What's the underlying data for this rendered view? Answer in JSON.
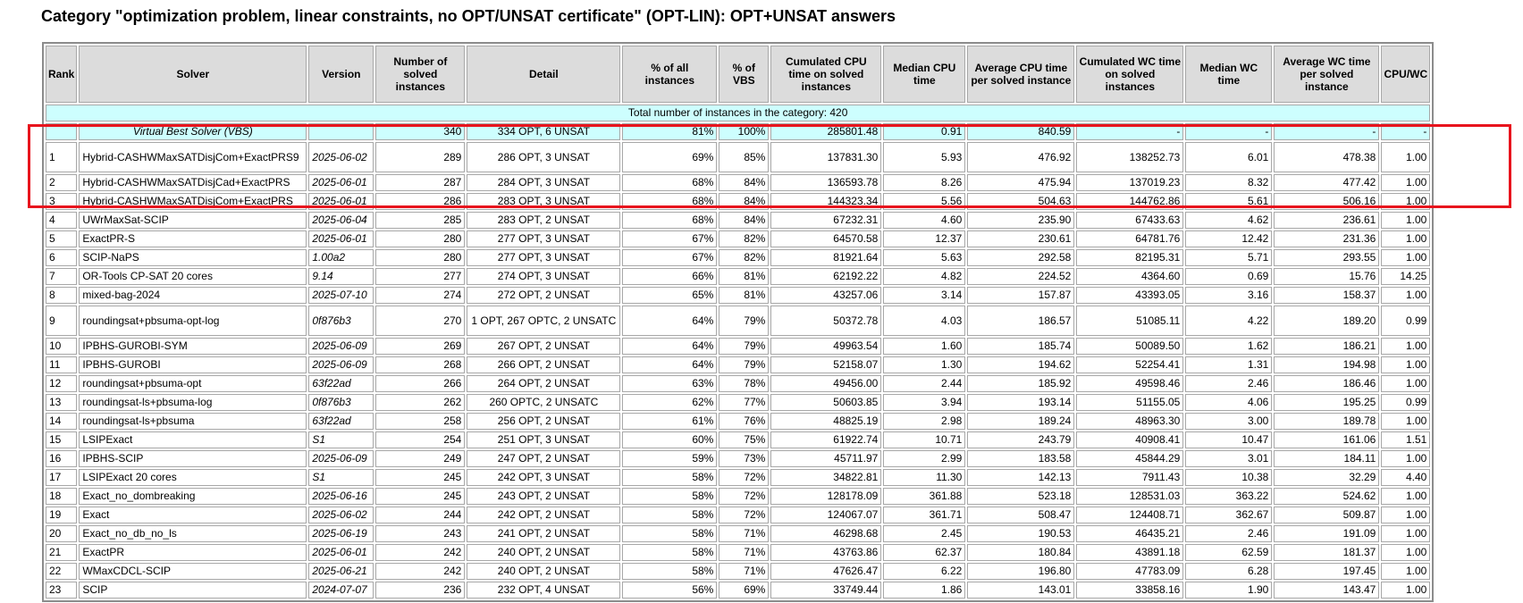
{
  "page": {
    "heading": "Category \"optimization problem, linear constraints, no OPT/UNSAT certificate\" (OPT-LIN): OPT+UNSAT answers"
  },
  "table": {
    "headers": {
      "rank": "Rank",
      "solver": "Solver",
      "version": "Version",
      "solved": "Number of solved instances",
      "detail": "Detail",
      "pct_all": "% of all instances",
      "pct_vbs": "% of VBS",
      "cum_cpu": "Cumulated CPU time on solved instances",
      "med_cpu": "Median CPU time",
      "avg_cpu": "Average CPU time per solved instance",
      "cum_wc": "Cumulated WC time on solved instances",
      "med_wc": "Median WC time",
      "avg_wc": "Average WC time per solved instance",
      "cpu_wc": "CPU/WC"
    },
    "total_row": "Total number of instances in the category: 420",
    "vbs": {
      "rank": "",
      "solver": "Virtual Best Solver (VBS)",
      "version": "",
      "solved": "340",
      "detail": "334 OPT, 6 UNSAT",
      "pct_all": "81%",
      "pct_vbs": "100%",
      "cum_cpu": "285801.48",
      "med_cpu": "0.91",
      "avg_cpu": "840.59",
      "cum_wc": "-",
      "med_wc": "-",
      "avg_wc": "-",
      "cpu_wc": "-"
    },
    "rows": [
      {
        "rank": "1",
        "solver": "Hybrid-CASHWMaxSATDisjCom+ExactPRS9",
        "version": "2025-06-02",
        "solved": "289",
        "detail": "286 OPT, 3 UNSAT",
        "pct_all": "69%",
        "pct_vbs": "85%",
        "cum_cpu": "137831.30",
        "med_cpu": "5.93",
        "avg_cpu": "476.92",
        "cum_wc": "138252.73",
        "med_wc": "6.01",
        "avg_wc": "478.38",
        "cpu_wc": "1.00"
      },
      {
        "rank": "2",
        "solver": "Hybrid-CASHWMaxSATDisjCad+ExactPRS",
        "version": "2025-06-01",
        "solved": "287",
        "detail": "284 OPT, 3 UNSAT",
        "pct_all": "68%",
        "pct_vbs": "84%",
        "cum_cpu": "136593.78",
        "med_cpu": "8.26",
        "avg_cpu": "475.94",
        "cum_wc": "137019.23",
        "med_wc": "8.32",
        "avg_wc": "477.42",
        "cpu_wc": "1.00"
      },
      {
        "rank": "3",
        "solver": "Hybrid-CASHWMaxSATDisjCom+ExactPRS",
        "version": "2025-06-01",
        "solved": "286",
        "detail": "283 OPT, 3 UNSAT",
        "pct_all": "68%",
        "pct_vbs": "84%",
        "cum_cpu": "144323.34",
        "med_cpu": "5.56",
        "avg_cpu": "504.63",
        "cum_wc": "144762.86",
        "med_wc": "5.61",
        "avg_wc": "506.16",
        "cpu_wc": "1.00"
      },
      {
        "rank": "4",
        "solver": "UWrMaxSat-SCIP",
        "version": "2025-06-04",
        "solved": "285",
        "detail": "283 OPT, 2 UNSAT",
        "pct_all": "68%",
        "pct_vbs": "84%",
        "cum_cpu": "67232.31",
        "med_cpu": "4.60",
        "avg_cpu": "235.90",
        "cum_wc": "67433.63",
        "med_wc": "4.62",
        "avg_wc": "236.61",
        "cpu_wc": "1.00"
      },
      {
        "rank": "5",
        "solver": "ExactPR-S",
        "version": "2025-06-01",
        "solved": "280",
        "detail": "277 OPT, 3 UNSAT",
        "pct_all": "67%",
        "pct_vbs": "82%",
        "cum_cpu": "64570.58",
        "med_cpu": "12.37",
        "avg_cpu": "230.61",
        "cum_wc": "64781.76",
        "med_wc": "12.42",
        "avg_wc": "231.36",
        "cpu_wc": "1.00"
      },
      {
        "rank": "6",
        "solver": "SCIP-NaPS",
        "version": "1.00a2",
        "solved": "280",
        "detail": "277 OPT, 3 UNSAT",
        "pct_all": "67%",
        "pct_vbs": "82%",
        "cum_cpu": "81921.64",
        "med_cpu": "5.63",
        "avg_cpu": "292.58",
        "cum_wc": "82195.31",
        "med_wc": "5.71",
        "avg_wc": "293.55",
        "cpu_wc": "1.00"
      },
      {
        "rank": "7",
        "solver": "OR-Tools CP-SAT 20 cores",
        "version": "9.14",
        "solved": "277",
        "detail": "274 OPT, 3 UNSAT",
        "pct_all": "66%",
        "pct_vbs": "81%",
        "cum_cpu": "62192.22",
        "med_cpu": "4.82",
        "avg_cpu": "224.52",
        "cum_wc": "4364.60",
        "med_wc": "0.69",
        "avg_wc": "15.76",
        "cpu_wc": "14.25"
      },
      {
        "rank": "8",
        "solver": "mixed-bag-2024",
        "version": "2025-07-10",
        "solved": "274",
        "detail": "272 OPT, 2 UNSAT",
        "pct_all": "65%",
        "pct_vbs": "81%",
        "cum_cpu": "43257.06",
        "med_cpu": "3.14",
        "avg_cpu": "157.87",
        "cum_wc": "43393.05",
        "med_wc": "3.16",
        "avg_wc": "158.37",
        "cpu_wc": "1.00"
      },
      {
        "rank": "9",
        "solver": "roundingsat+pbsuma-opt-log",
        "version": "0f876b3",
        "solved": "270",
        "detail": "1 OPT, 267 OPTC, 2 UNSATC",
        "pct_all": "64%",
        "pct_vbs": "79%",
        "cum_cpu": "50372.78",
        "med_cpu": "4.03",
        "avg_cpu": "186.57",
        "cum_wc": "51085.11",
        "med_wc": "4.22",
        "avg_wc": "189.20",
        "cpu_wc": "0.99"
      },
      {
        "rank": "10",
        "solver": "IPBHS-GUROBI-SYM",
        "version": "2025-06-09",
        "solved": "269",
        "detail": "267 OPT, 2 UNSAT",
        "pct_all": "64%",
        "pct_vbs": "79%",
        "cum_cpu": "49963.54",
        "med_cpu": "1.60",
        "avg_cpu": "185.74",
        "cum_wc": "50089.50",
        "med_wc": "1.62",
        "avg_wc": "186.21",
        "cpu_wc": "1.00"
      },
      {
        "rank": "11",
        "solver": "IPBHS-GUROBI",
        "version": "2025-06-09",
        "solved": "268",
        "detail": "266 OPT, 2 UNSAT",
        "pct_all": "64%",
        "pct_vbs": "79%",
        "cum_cpu": "52158.07",
        "med_cpu": "1.30",
        "avg_cpu": "194.62",
        "cum_wc": "52254.41",
        "med_wc": "1.31",
        "avg_wc": "194.98",
        "cpu_wc": "1.00"
      },
      {
        "rank": "12",
        "solver": "roundingsat+pbsuma-opt",
        "version": "63f22ad",
        "solved": "266",
        "detail": "264 OPT, 2 UNSAT",
        "pct_all": "63%",
        "pct_vbs": "78%",
        "cum_cpu": "49456.00",
        "med_cpu": "2.44",
        "avg_cpu": "185.92",
        "cum_wc": "49598.46",
        "med_wc": "2.46",
        "avg_wc": "186.46",
        "cpu_wc": "1.00"
      },
      {
        "rank": "13",
        "solver": "roundingsat-ls+pbsuma-log",
        "version": "0f876b3",
        "solved": "262",
        "detail": "260 OPTC, 2 UNSATC",
        "pct_all": "62%",
        "pct_vbs": "77%",
        "cum_cpu": "50603.85",
        "med_cpu": "3.94",
        "avg_cpu": "193.14",
        "cum_wc": "51155.05",
        "med_wc": "4.06",
        "avg_wc": "195.25",
        "cpu_wc": "0.99"
      },
      {
        "rank": "14",
        "solver": "roundingsat-ls+pbsuma",
        "version": "63f22ad",
        "solved": "258",
        "detail": "256 OPT, 2 UNSAT",
        "pct_all": "61%",
        "pct_vbs": "76%",
        "cum_cpu": "48825.19",
        "med_cpu": "2.98",
        "avg_cpu": "189.24",
        "cum_wc": "48963.30",
        "med_wc": "3.00",
        "avg_wc": "189.78",
        "cpu_wc": "1.00"
      },
      {
        "rank": "15",
        "solver": "LSIPExact",
        "version": "S1",
        "solved": "254",
        "detail": "251 OPT, 3 UNSAT",
        "pct_all": "60%",
        "pct_vbs": "75%",
        "cum_cpu": "61922.74",
        "med_cpu": "10.71",
        "avg_cpu": "243.79",
        "cum_wc": "40908.41",
        "med_wc": "10.47",
        "avg_wc": "161.06",
        "cpu_wc": "1.51"
      },
      {
        "rank": "16",
        "solver": "IPBHS-SCIP",
        "version": "2025-06-09",
        "solved": "249",
        "detail": "247 OPT, 2 UNSAT",
        "pct_all": "59%",
        "pct_vbs": "73%",
        "cum_cpu": "45711.97",
        "med_cpu": "2.99",
        "avg_cpu": "183.58",
        "cum_wc": "45844.29",
        "med_wc": "3.01",
        "avg_wc": "184.11",
        "cpu_wc": "1.00"
      },
      {
        "rank": "17",
        "solver": "LSIPExact 20 cores",
        "version": "S1",
        "solved": "245",
        "detail": "242 OPT, 3 UNSAT",
        "pct_all": "58%",
        "pct_vbs": "72%",
        "cum_cpu": "34822.81",
        "med_cpu": "11.30",
        "avg_cpu": "142.13",
        "cum_wc": "7911.43",
        "med_wc": "10.38",
        "avg_wc": "32.29",
        "cpu_wc": "4.40"
      },
      {
        "rank": "18",
        "solver": "Exact_no_dombreaking",
        "version": "2025-06-16",
        "solved": "245",
        "detail": "243 OPT, 2 UNSAT",
        "pct_all": "58%",
        "pct_vbs": "72%",
        "cum_cpu": "128178.09",
        "med_cpu": "361.88",
        "avg_cpu": "523.18",
        "cum_wc": "128531.03",
        "med_wc": "363.22",
        "avg_wc": "524.62",
        "cpu_wc": "1.00"
      },
      {
        "rank": "19",
        "solver": "Exact",
        "version": "2025-06-02",
        "solved": "244",
        "detail": "242 OPT, 2 UNSAT",
        "pct_all": "58%",
        "pct_vbs": "72%",
        "cum_cpu": "124067.07",
        "med_cpu": "361.71",
        "avg_cpu": "508.47",
        "cum_wc": "124408.71",
        "med_wc": "362.67",
        "avg_wc": "509.87",
        "cpu_wc": "1.00"
      },
      {
        "rank": "20",
        "solver": "Exact_no_db_no_ls",
        "version": "2025-06-19",
        "solved": "243",
        "detail": "241 OPT, 2 UNSAT",
        "pct_all": "58%",
        "pct_vbs": "71%",
        "cum_cpu": "46298.68",
        "med_cpu": "2.45",
        "avg_cpu": "190.53",
        "cum_wc": "46435.21",
        "med_wc": "2.46",
        "avg_wc": "191.09",
        "cpu_wc": "1.00"
      },
      {
        "rank": "21",
        "solver": "ExactPR",
        "version": "2025-06-01",
        "solved": "242",
        "detail": "240 OPT, 2 UNSAT",
        "pct_all": "58%",
        "pct_vbs": "71%",
        "cum_cpu": "43763.86",
        "med_cpu": "62.37",
        "avg_cpu": "180.84",
        "cum_wc": "43891.18",
        "med_wc": "62.59",
        "avg_wc": "181.37",
        "cpu_wc": "1.00"
      },
      {
        "rank": "22",
        "solver": "WMaxCDCL-SCIP",
        "version": "2025-06-21",
        "solved": "242",
        "detail": "240 OPT, 2 UNSAT",
        "pct_all": "58%",
        "pct_vbs": "71%",
        "cum_cpu": "47626.47",
        "med_cpu": "6.22",
        "avg_cpu": "196.80",
        "cum_wc": "47783.09",
        "med_wc": "6.28",
        "avg_wc": "197.45",
        "cpu_wc": "1.00"
      },
      {
        "rank": "23",
        "solver": "SCIP",
        "version": "2024-07-07",
        "solved": "236",
        "detail": "232 OPT, 4 UNSAT",
        "pct_all": "56%",
        "pct_vbs": "69%",
        "cum_cpu": "33749.44",
        "med_cpu": "1.86",
        "avg_cpu": "143.01",
        "cum_wc": "33858.16",
        "med_wc": "1.90",
        "avg_wc": "143.47",
        "cpu_wc": "1.00"
      }
    ]
  }
}
